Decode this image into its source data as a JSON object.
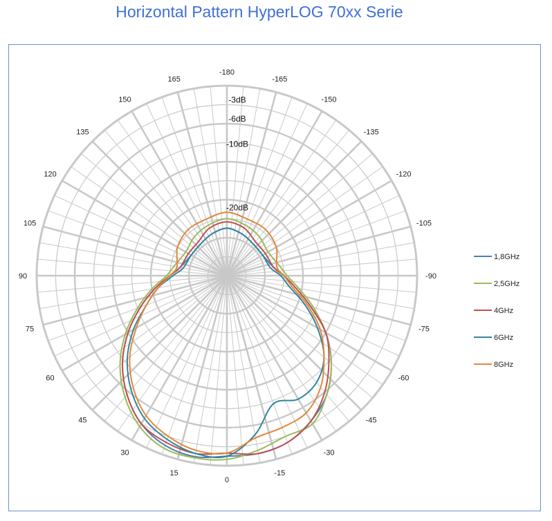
{
  "title": "Horizontal Pattern HyperLOG 70xx Serie",
  "chart_data": {
    "type": "polar-line",
    "angle_unit": "degrees",
    "angle_ticks": [
      0,
      15,
      30,
      45,
      60,
      75,
      90,
      105,
      120,
      135,
      150,
      165,
      -180,
      -165,
      -150,
      -135,
      -120,
      -105,
      -90,
      -75,
      -60,
      -45,
      -30,
      -15
    ],
    "angle_labels": [
      "0",
      "15",
      "30",
      "45",
      "60",
      "75",
      "90",
      "105",
      "120",
      "135",
      "150",
      "165",
      "-180",
      "-165",
      "-150",
      "-135",
      "-120",
      "-105",
      "-90",
      "-75",
      "-60",
      "-45",
      "-30",
      "-15"
    ],
    "radial_ticks": [
      -3,
      -6,
      -10,
      -20
    ],
    "radial_labels": [
      "-3dB",
      "-6dB",
      "-10dB",
      "-20dB"
    ],
    "grid": true,
    "legend": "right",
    "series": [
      {
        "name": "1,8GHz",
        "color": "#4a7ebb",
        "angles": [
          0,
          10,
          20,
          30,
          40,
          50,
          60,
          70,
          80,
          90,
          100,
          120,
          140,
          160,
          180,
          -160,
          -140,
          -120,
          -100,
          -90,
          -80,
          -70,
          -60,
          -50,
          -40,
          -30,
          -20,
          -10
        ],
        "values": [
          -1.5,
          -1,
          -1.5,
          -3,
          -5.5,
          -8.5,
          -12,
          -15.5,
          -18.5,
          -21,
          -22.5,
          -23.5,
          -23.5,
          -23,
          -22.5,
          -23,
          -23.5,
          -23.5,
          -22.5,
          -21,
          -19,
          -16,
          -12,
          -8.5,
          -5.5,
          -3.5,
          -2,
          -1.5
        ]
      },
      {
        "name": "2,5GHz",
        "color": "#9bbb59",
        "angles": [
          0,
          10,
          20,
          30,
          40,
          50,
          60,
          70,
          80,
          90,
          100,
          120,
          140,
          160,
          180,
          -160,
          -140,
          -120,
          -100,
          -90,
          -80,
          -70,
          -60,
          -50,
          -40,
          -30,
          -20,
          -10
        ],
        "values": [
          -1,
          -0.8,
          -1,
          -2.5,
          -5,
          -8,
          -11.5,
          -15,
          -18,
          -20.5,
          -21.5,
          -22.5,
          -22,
          -21.5,
          -21,
          -21.5,
          -22,
          -22.5,
          -21.5,
          -20.5,
          -18.5,
          -15.5,
          -12,
          -8.5,
          -5.5,
          -3,
          -3,
          -2
        ]
      },
      {
        "name": "4GHz",
        "color": "#c0504d",
        "angles": [
          0,
          10,
          20,
          30,
          40,
          50,
          60,
          70,
          80,
          90,
          100,
          120,
          140,
          160,
          180,
          -160,
          -140,
          -120,
          -100,
          -90,
          -80,
          -70,
          -60,
          -50,
          -40,
          -30,
          -20,
          -10
        ],
        "values": [
          -2,
          -1.5,
          -2,
          -3,
          -5.5,
          -8.5,
          -12,
          -15.5,
          -18.5,
          -21,
          -22.5,
          -23,
          -23,
          -22,
          -21.5,
          -22,
          -23,
          -23,
          -22.5,
          -21,
          -19,
          -16,
          -12,
          -9,
          -6,
          -3.5,
          -2,
          -1.5
        ]
      },
      {
        "name": "6GHz",
        "color": "#31859c",
        "angles": [
          0,
          10,
          20,
          30,
          40,
          50,
          60,
          70,
          80,
          90,
          100,
          120,
          140,
          160,
          180,
          -160,
          -140,
          -120,
          -100,
          -90,
          -80,
          -70,
          -60,
          -50,
          -40,
          -30,
          -20,
          -10
        ],
        "values": [
          -1.5,
          -1.5,
          -2.5,
          -4,
          -6.5,
          -9.5,
          -13,
          -16.5,
          -19,
          -21.5,
          -23,
          -23.5,
          -23.5,
          -23,
          -22.5,
          -23,
          -23.5,
          -23.5,
          -23,
          -21.5,
          -20,
          -17,
          -13.5,
          -10,
          -8,
          -7.5,
          -8.5,
          -4.5
        ]
      },
      {
        "name": "8GHz",
        "color": "#e0873a",
        "angles": [
          0,
          10,
          20,
          30,
          40,
          50,
          60,
          70,
          80,
          90,
          100,
          120,
          140,
          160,
          180,
          -160,
          -140,
          -120,
          -100,
          -90,
          -80,
          -70,
          -60,
          -50,
          -40,
          -30,
          -20,
          -10
        ],
        "values": [
          -2,
          -2,
          -3,
          -4.5,
          -7,
          -10,
          -13.5,
          -16.5,
          -19,
          -21,
          -22,
          -21,
          -20.5,
          -20.5,
          -20,
          -20.5,
          -20.5,
          -21,
          -22,
          -21,
          -19.5,
          -16.5,
          -13,
          -10,
          -7,
          -5,
          -4.5,
          -4
        ]
      }
    ]
  }
}
